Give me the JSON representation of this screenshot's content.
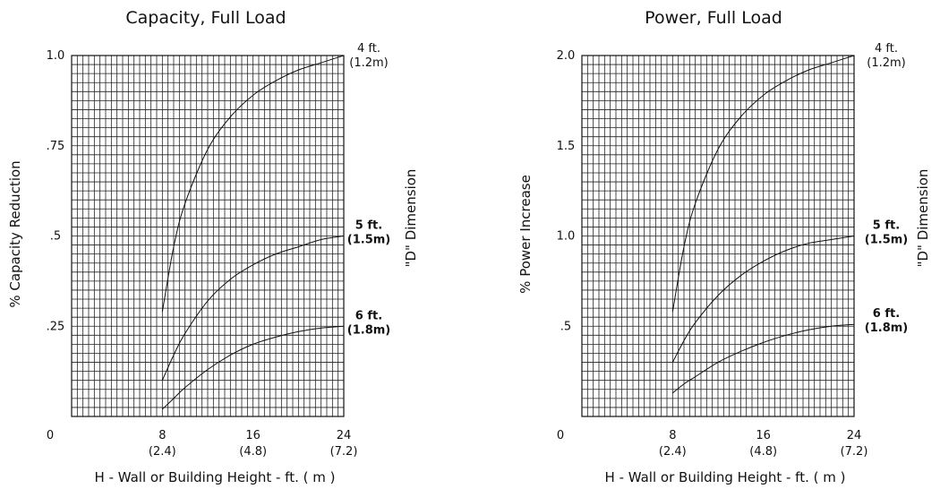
{
  "chart_data": [
    {
      "type": "line",
      "title": "Capacity, Full Load",
      "xlabel": "H - Wall or Building Height - ft. ( m )",
      "ylabel": "% Capacity Reduction",
      "right_label": "\"D\" Dimension",
      "xlim": [
        0,
        24
      ],
      "ylim": [
        0,
        1.0
      ],
      "x_ticks": [
        {
          "value": 0,
          "label": "0",
          "sub": ""
        },
        {
          "value": 8,
          "label": "8",
          "sub": "(2.4)"
        },
        {
          "value": 16,
          "label": "16",
          "sub": "(4.8)"
        },
        {
          "value": 24,
          "label": "24",
          "sub": "(7.2)"
        }
      ],
      "y_ticks": [
        {
          "value": 0.25,
          "label": ".25"
        },
        {
          "value": 0.5,
          "label": ".5"
        },
        {
          "value": 0.75,
          "label": ".75"
        },
        {
          "value": 1.0,
          "label": "1.0"
        }
      ],
      "series": [
        {
          "name": "4 ft.",
          "sub": "(1.2m)",
          "bold": false,
          "x": [
            8,
            9,
            10,
            12,
            14,
            16,
            18,
            20,
            22,
            24
          ],
          "values": [
            0.29,
            0.47,
            0.59,
            0.74,
            0.83,
            0.89,
            0.93,
            0.96,
            0.98,
            1.0
          ]
        },
        {
          "name": "5 ft.",
          "sub": "(1.5m)",
          "bold": true,
          "x": [
            8,
            9,
            10,
            12,
            14,
            16,
            18,
            20,
            22,
            24
          ],
          "values": [
            0.1,
            0.17,
            0.23,
            0.32,
            0.38,
            0.42,
            0.45,
            0.47,
            0.49,
            0.5
          ]
        },
        {
          "name": "6 ft.",
          "sub": "(1.8m)",
          "bold": true,
          "x": [
            8,
            9,
            10,
            12,
            14,
            16,
            18,
            20,
            22,
            24
          ],
          "values": [
            0.02,
            0.05,
            0.08,
            0.13,
            0.17,
            0.2,
            0.22,
            0.235,
            0.245,
            0.25
          ]
        }
      ]
    },
    {
      "type": "line",
      "title": "Power, Full Load",
      "xlabel": "H - Wall or Building Height - ft. ( m )",
      "ylabel": "% Power Increase",
      "right_label": "\"D\" Dimension",
      "xlim": [
        0,
        24
      ],
      "ylim": [
        0,
        2.0
      ],
      "x_ticks": [
        {
          "value": 0,
          "label": "0",
          "sub": ""
        },
        {
          "value": 8,
          "label": "8",
          "sub": "(2.4)"
        },
        {
          "value": 16,
          "label": "16",
          "sub": "(4.8)"
        },
        {
          "value": 24,
          "label": "24",
          "sub": "(7.2)"
        }
      ],
      "y_ticks": [
        {
          "value": 0.5,
          "label": ".5"
        },
        {
          "value": 1.0,
          "label": "1.0"
        },
        {
          "value": 1.5,
          "label": "1.5"
        },
        {
          "value": 2.0,
          "label": "2.0"
        }
      ],
      "series": [
        {
          "name": "4 ft.",
          "sub": "(1.2m)",
          "bold": false,
          "x": [
            8,
            9,
            10,
            12,
            14,
            16,
            18,
            20,
            22,
            24
          ],
          "values": [
            0.58,
            0.94,
            1.18,
            1.48,
            1.66,
            1.78,
            1.86,
            1.92,
            1.96,
            2.0
          ]
        },
        {
          "name": "5 ft.",
          "sub": "(1.5m)",
          "bold": true,
          "x": [
            8,
            9,
            10,
            12,
            14,
            16,
            18,
            20,
            22,
            24
          ],
          "values": [
            0.3,
            0.42,
            0.52,
            0.67,
            0.78,
            0.86,
            0.92,
            0.96,
            0.98,
            1.0
          ]
        },
        {
          "name": "6 ft.",
          "sub": "(1.8m)",
          "bold": true,
          "x": [
            8,
            9,
            10,
            12,
            14,
            16,
            18,
            20,
            22,
            24
          ],
          "values": [
            0.13,
            0.18,
            0.22,
            0.3,
            0.36,
            0.41,
            0.45,
            0.48,
            0.5,
            0.51
          ]
        }
      ]
    }
  ]
}
